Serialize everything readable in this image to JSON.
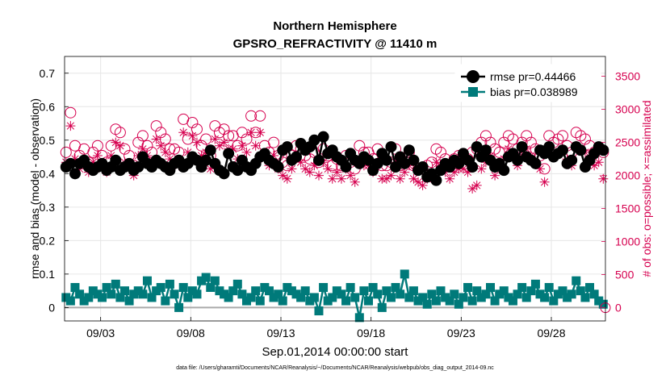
{
  "chart_data": {
    "type": "line",
    "title": "Northern Hemisphere",
    "subtitle": "GPSRO_REFRACTIVITY @ 11410 m",
    "xlabel": "Sep.01,2014 00:00:00 start",
    "ylabel": "rmse and bias (model - observation)",
    "ylabel_right": "# of obs: o=possible; ×=assimilated",
    "footnote": "data file: /Users/gharamti/Documents/NCAR/Reanalysis/~/Documents/NCAR/Reanalysis/webpub/obs_diag_output_2014-09.nc",
    "x_ticks": [
      {
        "label": "09/03",
        "value": 3
      },
      {
        "label": "09/08",
        "value": 8
      },
      {
        "label": "09/13",
        "value": 13
      },
      {
        "label": "09/18",
        "value": 18
      },
      {
        "label": "09/23",
        "value": 23
      },
      {
        "label": "09/28",
        "value": 28
      }
    ],
    "xlim": [
      1.0,
      31.0
    ],
    "ylim": [
      -0.04,
      0.75
    ],
    "y_ticks": [
      "0",
      "0.1",
      "0.2",
      "0.3",
      "0.4",
      "0.5",
      "0.6",
      "0.7"
    ],
    "y2lim": [
      -200,
      3800
    ],
    "y2_ticks": [
      "0",
      "500",
      "1000",
      "1500",
      "2000",
      "2500",
      "3000",
      "3500"
    ],
    "grid": true,
    "legend_position": "top-right",
    "n_points": 120,
    "series": [
      {
        "name": "rmse pr=0.44466",
        "axis": "left",
        "marker": "filled-circle",
        "color": "#000000",
        "values": [
          0.42,
          0.43,
          0.4,
          0.43,
          0.44,
          0.42,
          0.41,
          0.42,
          0.43,
          0.41,
          0.42,
          0.44,
          0.41,
          0.42,
          0.43,
          0.41,
          0.42,
          0.45,
          0.43,
          0.42,
          0.44,
          0.43,
          0.42,
          0.41,
          0.43,
          0.44,
          0.42,
          0.43,
          0.45,
          0.44,
          0.42,
          0.44,
          0.47,
          0.43,
          0.41,
          0.4,
          0.46,
          0.42,
          0.41,
          0.44,
          0.42,
          0.41,
          0.43,
          0.45,
          0.46,
          0.44,
          0.43,
          0.42,
          0.47,
          0.48,
          0.44,
          0.45,
          0.49,
          0.47,
          0.48,
          0.5,
          0.44,
          0.51,
          0.46,
          0.47,
          0.45,
          0.44,
          0.42,
          0.46,
          0.44,
          0.43,
          0.45,
          0.44,
          0.41,
          0.43,
          0.46,
          0.44,
          0.48,
          0.42,
          0.45,
          0.43,
          0.47,
          0.44,
          0.41,
          0.42,
          0.39,
          0.4,
          0.38,
          0.41,
          0.43,
          0.42,
          0.44,
          0.43,
          0.46,
          0.44,
          0.42,
          0.48,
          0.45,
          0.47,
          0.44,
          0.42,
          0.43,
          0.41,
          0.45,
          0.46,
          0.44,
          0.48,
          0.45,
          0.44,
          0.43,
          0.47,
          0.46,
          0.48,
          0.45,
          0.46,
          0.47,
          0.43,
          0.44,
          0.48,
          0.47,
          0.42,
          0.44,
          0.46,
          0.48,
          0.47
        ]
      },
      {
        "name": "bias pr=0.038989",
        "axis": "left",
        "marker": "filled-square",
        "color": "#007a7a",
        "values": [
          0.03,
          0.02,
          0.06,
          0.04,
          0.02,
          0.03,
          0.05,
          0.04,
          0.03,
          0.06,
          0.04,
          0.07,
          0.03,
          0.05,
          0.02,
          0.04,
          0.05,
          0.04,
          0.08,
          0.03,
          0.05,
          0.06,
          0.02,
          0.07,
          0.04,
          0.0,
          0.06,
          0.03,
          0.05,
          0.04,
          0.08,
          0.09,
          0.06,
          0.08,
          0.05,
          0.04,
          0.03,
          0.05,
          0.07,
          0.04,
          0.02,
          0.03,
          0.05,
          0.02,
          0.06,
          0.05,
          0.03,
          0.04,
          0.02,
          0.06,
          0.05,
          0.04,
          0.03,
          0.05,
          0.02,
          0.03,
          -0.01,
          0.06,
          0.02,
          0.03,
          0.05,
          0.04,
          0.02,
          0.06,
          0.03,
          -0.03,
          0.05,
          0.02,
          0.06,
          0.04,
          0.0,
          0.05,
          0.03,
          0.06,
          0.04,
          0.1,
          0.03,
          0.05,
          0.02,
          0.03,
          0.01,
          0.04,
          0.02,
          0.05,
          0.03,
          0.02,
          0.04,
          0.01,
          0.03,
          0.06,
          0.02,
          0.05,
          0.03,
          0.04,
          0.06,
          0.02,
          0.04,
          0.05,
          0.03,
          0.02,
          0.04,
          0.06,
          0.03,
          0.05,
          0.07,
          0.04,
          0.03,
          0.06,
          0.02,
          0.04,
          0.05,
          0.03,
          0.04,
          0.08,
          0.05,
          0.03,
          0.06,
          0.04,
          0.02,
          0.01
        ]
      },
      {
        "name": "possible",
        "axis": "right",
        "marker": "open-circle",
        "color": "#d6004f",
        "values": [
          2350,
          2950,
          2450,
          2300,
          2400,
          2200,
          2350,
          2450,
          2300,
          2200,
          2450,
          2700,
          2650,
          2400,
          2300,
          2150,
          2500,
          2600,
          2450,
          2350,
          2750,
          2650,
          2550,
          2400,
          2400,
          2350,
          2850,
          2550,
          2800,
          2700,
          2450,
          2550,
          2300,
          2750,
          2650,
          2700,
          2600,
          2600,
          2450,
          2650,
          2550,
          2900,
          2650,
          2900,
          2450,
          2350,
          2500,
          2300,
          2200,
          2150,
          2300,
          2450,
          2400,
          2300,
          2250,
          2350,
          2200,
          2400,
          2300,
          2150,
          2250,
          2150,
          2300,
          2200,
          2100,
          2450,
          2350,
          2350,
          2250,
          2400,
          2150,
          2150,
          2200,
          2400,
          2150,
          2250,
          2350,
          2150,
          2100,
          2100,
          2150,
          2200,
          2400,
          2350,
          2250,
          2150,
          2250,
          2300,
          2300,
          2250,
          2350,
          2400,
          2500,
          2600,
          2500,
          2400,
          2350,
          2500,
          2600,
          2550,
          2400,
          2500,
          2600,
          2500,
          2400,
          2300,
          2100,
          2600,
          2500,
          2550,
          2600,
          2450,
          2350,
          2650,
          2600,
          2550,
          2450,
          2350,
          2400,
          2350
        ]
      },
      {
        "name": "assimilated",
        "axis": "right",
        "marker": "asterisk",
        "color": "#d6004f",
        "values": [
          2200,
          2750,
          2250,
          2100,
          2200,
          2050,
          2200,
          2300,
          2100,
          2050,
          2300,
          2500,
          2450,
          2200,
          2100,
          2000,
          2300,
          2400,
          2300,
          2200,
          2550,
          2450,
          2350,
          2250,
          2200,
          2150,
          2650,
          2350,
          2600,
          2500,
          2300,
          2350,
          2100,
          2550,
          2450,
          2500,
          2400,
          2400,
          2250,
          2450,
          2350,
          2650,
          2450,
          2650,
          2250,
          2150,
          2300,
          2100,
          2000,
          1950,
          2100,
          2250,
          2200,
          2100,
          2050,
          2150,
          2000,
          2200,
          2100,
          1950,
          2050,
          1950,
          2100,
          2000,
          1900,
          2250,
          2150,
          2150,
          2050,
          2200,
          1950,
          1950,
          2000,
          2200,
          1950,
          2050,
          2150,
          1950,
          1900,
          1850,
          1950,
          2000,
          2200,
          2150,
          2050,
          1950,
          2050,
          2100,
          2100,
          2050,
          1800,
          1850,
          2100,
          2200,
          2300,
          2000,
          2100,
          2250,
          2400,
          2300,
          2150,
          2300,
          2400,
          2300,
          2200,
          2100,
          1900,
          2400,
          2300,
          2350,
          2400,
          2250,
          2150,
          2450,
          2400,
          2350,
          2250,
          2150,
          2200,
          1950
        ]
      }
    ]
  }
}
